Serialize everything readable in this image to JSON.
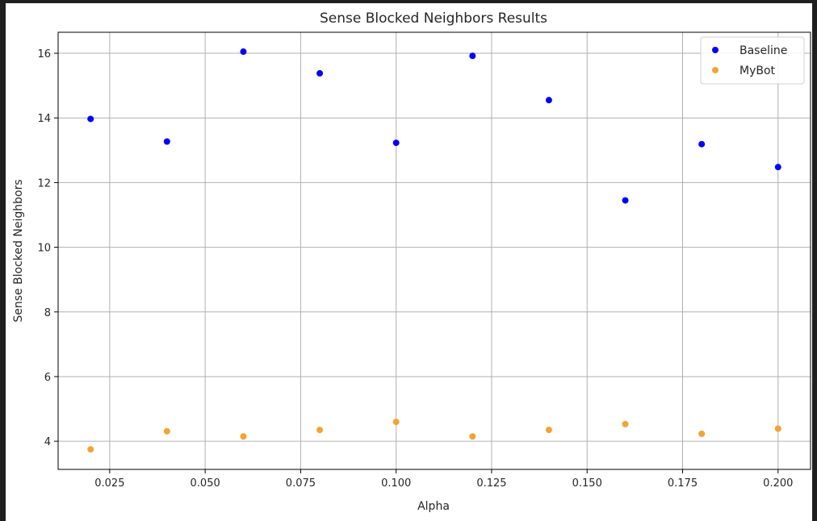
{
  "chart_data": {
    "type": "scatter",
    "title": "Sense Blocked Neighbors Results",
    "xlabel": "Alpha",
    "ylabel": "Sense Blocked Neighbors",
    "xlim": [
      0.0115,
      0.2085
    ],
    "ylim": [
      3.13,
      16.65
    ],
    "xticks": [
      0.025,
      0.05,
      0.075,
      0.1,
      0.125,
      0.15,
      0.175,
      0.2
    ],
    "xtick_labels": [
      "0.025",
      "0.050",
      "0.075",
      "0.100",
      "0.125",
      "0.150",
      "0.175",
      "0.200"
    ],
    "yticks": [
      4,
      6,
      8,
      10,
      12,
      14,
      16
    ],
    "ytick_labels": [
      "4",
      "6",
      "8",
      "10",
      "12",
      "14",
      "16"
    ],
    "grid": true,
    "legend_position": "top-right",
    "x": [
      0.02,
      0.04,
      0.06,
      0.08,
      0.1,
      0.12,
      0.14,
      0.16,
      0.18,
      0.2
    ],
    "series": [
      {
        "name": "Baseline",
        "color": "#0000ff",
        "values": [
          13.97,
          13.27,
          16.05,
          15.38,
          13.23,
          15.92,
          14.55,
          11.45,
          13.19,
          12.48
        ]
      },
      {
        "name": "MyBot",
        "color": "#f4a233",
        "values": [
          3.75,
          4.31,
          4.15,
          4.35,
          4.6,
          4.15,
          4.35,
          4.53,
          4.23,
          4.39
        ]
      }
    ]
  }
}
